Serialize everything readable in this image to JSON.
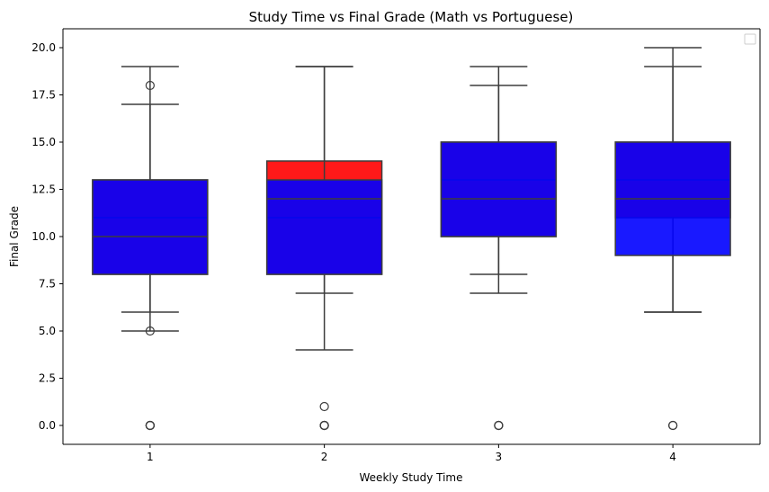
{
  "chart_data": {
    "type": "box",
    "title": "Study Time vs Final Grade (Math vs Portuguese)",
    "xlabel": "Weekly Study Time",
    "ylabel": "Final Grade",
    "categories": [
      "1",
      "2",
      "3",
      "4"
    ],
    "ylim": [
      -1,
      21
    ],
    "yticks": [
      "0.0",
      "2.5",
      "5.0",
      "7.5",
      "10.0",
      "12.5",
      "15.0",
      "17.5",
      "20.0"
    ],
    "grid": false,
    "legend": {
      "placement": "top-right",
      "entries": []
    },
    "series": [
      {
        "color": "#ff0000",
        "boxes": [
          {
            "category": "1",
            "whislo": 6,
            "q1": 8,
            "median": 11,
            "q3": 13,
            "whishi": 19,
            "fliers": [
              0,
              0,
              0
            ]
          },
          {
            "category": "2",
            "whislo": 4,
            "q1": 8,
            "median": 11,
            "q3": 14,
            "whishi": 19,
            "fliers": [
              1,
              0,
              0
            ]
          },
          {
            "category": "3",
            "whislo": 7,
            "q1": 10,
            "median": 13,
            "q3": 15,
            "whishi": 19,
            "fliers": [
              0,
              0
            ]
          },
          {
            "category": "4",
            "whislo": 6,
            "q1": 11,
            "median": 13,
            "q3": 15,
            "whishi": 20,
            "fliers": [
              0
            ]
          }
        ]
      },
      {
        "color": "#0000ff",
        "boxes": [
          {
            "category": "1",
            "whislo": 5,
            "q1": 8,
            "median": 10,
            "q3": 13,
            "whishi": 17,
            "fliers": [
              18,
              5,
              0
            ]
          },
          {
            "category": "2",
            "whislo": 7,
            "q1": 8,
            "median": 12,
            "q3": 13,
            "whishi": 19,
            "fliers": [
              0,
              0
            ]
          },
          {
            "category": "3",
            "whislo": 8,
            "q1": 10,
            "median": 12,
            "q3": 15,
            "whishi": 18,
            "fliers": [
              0
            ]
          },
          {
            "category": "4",
            "whislo": 6,
            "q1": 9,
            "median": 12,
            "q3": 15,
            "whishi": 19,
            "fliers": [
              0
            ]
          }
        ]
      }
    ]
  }
}
